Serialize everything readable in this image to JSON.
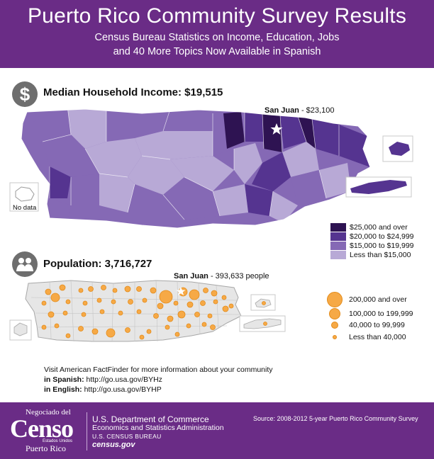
{
  "header": {
    "title": "Puerto Rico Community Survey Results",
    "subtitle_line1": "Census Bureau Statistics on Income, Education, Jobs",
    "subtitle_line2": "and 40 More Topics Now Available in Spanish"
  },
  "income": {
    "icon": "dollar-icon",
    "icon_glyph": "$",
    "title": "Median Household Income: $19,515",
    "highlight_name": "San Juan",
    "highlight_value": " - $23,100",
    "no_data_label": "No data",
    "legend": [
      {
        "label": "$25,000 and over",
        "color": "#2e1352"
      },
      {
        "label": "$20,000 to $24,999",
        "color": "#553490"
      },
      {
        "label": "$15,000 to $19,999",
        "color": "#8569b5"
      },
      {
        "label": "Less than $15,000",
        "color": "#b8a9d6"
      }
    ]
  },
  "population": {
    "icon": "people-icon",
    "title": "Population: 3,716,727",
    "highlight_name": "San Juan",
    "highlight_value": " - 393,633 people",
    "legend": [
      {
        "label": "200,000 and over"
      },
      {
        "label": "100,000 to 199,999"
      },
      {
        "label": "40,000 to 99,999"
      },
      {
        "label": "Less than 40,000"
      }
    ]
  },
  "info": {
    "line1": "Visit American FactFinder for more information about your community",
    "spanish_label": "in Spanish:",
    "spanish_url": " http://go.usa.gov/BYHz",
    "english_label": "in English:",
    "english_url": " http://go.usa.gov/BYHP"
  },
  "footer": {
    "logo_top": "Negociado del",
    "logo_main": "Censo",
    "logo_small": "Estados Unidos",
    "logo_region": "Puerto Rico",
    "dept": "U.S. Department of Commerce",
    "admin": "Economics and Statistics Administration",
    "bureau": "U.S. CENSUS BUREAU",
    "site": "census.gov",
    "source": "Source: 2008-2012 5-year Puerto Rico Community Survey"
  }
}
